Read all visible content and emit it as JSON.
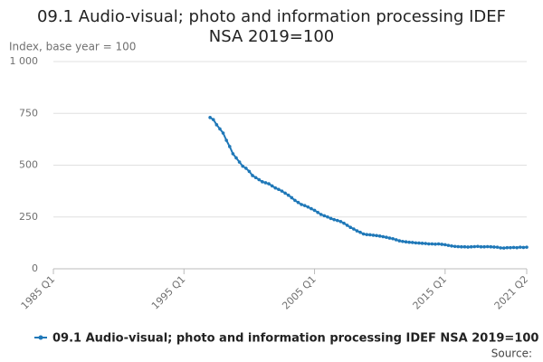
{
  "chart_data": {
    "type": "line",
    "title": "09.1 Audio-visual; photo and information processing IDEF NSA 2019=100",
    "y_label": "Index, base year = 100",
    "source": "Source:",
    "categories": [
      "1985 Q1",
      null,
      null,
      null,
      null,
      null,
      null,
      null,
      null,
      null,
      null,
      null,
      null,
      null,
      null,
      null,
      null,
      null,
      null,
      null,
      null,
      null,
      null,
      null,
      null,
      null,
      null,
      null,
      null,
      null,
      null,
      null,
      null,
      null,
      null,
      null,
      null,
      null,
      null,
      null,
      "1995 Q1",
      null,
      null,
      null,
      null,
      null,
      null,
      null,
      null,
      null,
      null,
      null,
      null,
      null,
      null,
      null,
      null,
      null,
      null,
      null,
      null,
      null,
      null,
      null,
      null,
      null,
      null,
      null,
      null,
      null,
      null,
      null,
      null,
      null,
      null,
      null,
      null,
      null,
      null,
      null,
      "2005 Q1",
      null,
      null,
      null,
      null,
      null,
      null,
      null,
      null,
      null,
      null,
      null,
      null,
      null,
      null,
      null,
      null,
      null,
      null,
      null,
      null,
      null,
      null,
      null,
      null,
      null,
      null,
      null,
      null,
      null,
      null,
      null,
      null,
      null,
      null,
      null,
      null,
      null,
      null,
      null,
      "2015 Q1",
      null,
      null,
      null,
      null,
      null,
      null,
      null,
      null,
      null,
      null,
      null,
      null,
      null,
      null,
      null,
      null,
      null,
      null,
      null,
      null,
      null,
      null,
      null,
      null,
      "2021 Q2"
    ],
    "series": [
      {
        "name": "09.1 Audio-visual; photo and information processing IDEF NSA 2019=100",
        "color": "#1f78b8",
        "values": [
          null,
          null,
          null,
          null,
          null,
          null,
          null,
          null,
          null,
          null,
          null,
          null,
          null,
          null,
          null,
          null,
          null,
          null,
          null,
          null,
          null,
          null,
          null,
          null,
          null,
          null,
          null,
          null,
          null,
          null,
          null,
          null,
          null,
          null,
          null,
          null,
          null,
          null,
          null,
          null,
          null,
          null,
          null,
          null,
          null,
          null,
          null,
          null,
          730,
          720,
          695,
          675,
          655,
          620,
          590,
          555,
          535,
          515,
          495,
          485,
          470,
          450,
          440,
          430,
          420,
          415,
          410,
          400,
          390,
          383,
          375,
          365,
          355,
          343,
          330,
          320,
          310,
          305,
          298,
          290,
          282,
          272,
          262,
          256,
          250,
          243,
          237,
          233,
          228,
          220,
          210,
          200,
          192,
          183,
          176,
          168,
          165,
          164,
          162,
          160,
          158,
          155,
          152,
          148,
          145,
          140,
          135,
          132,
          130,
          128,
          127,
          125,
          124,
          123,
          122,
          120,
          120,
          119,
          120,
          118,
          116,
          113,
          110,
          108,
          107,
          106,
          106,
          105,
          106,
          107,
          108,
          106,
          106,
          107,
          106,
          105,
          104,
          101,
          100,
          102,
          102,
          103,
          102,
          104,
          103,
          104
        ]
      }
    ],
    "ylim": [
      0,
      1000
    ],
    "yticks": [
      0,
      250,
      500,
      750,
      {
        "value": 1000,
        "label": "1 000"
      }
    ],
    "grid": true
  }
}
